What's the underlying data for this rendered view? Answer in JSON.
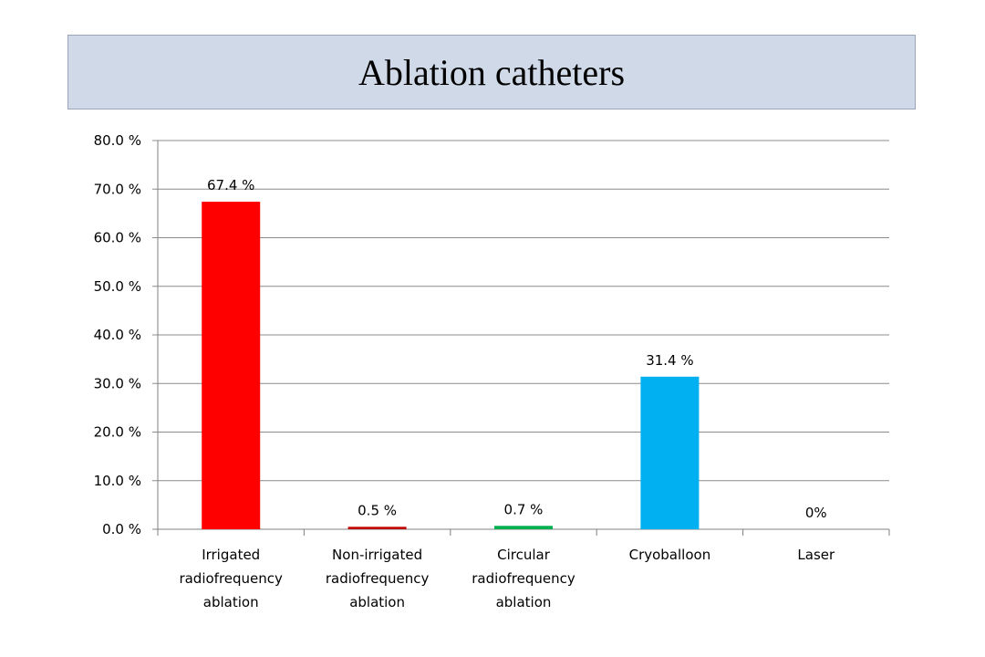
{
  "chart_data": {
    "type": "bar",
    "title": "Ablation catheters",
    "categories": [
      [
        "Irrigated",
        "radiofrequency",
        "ablation"
      ],
      [
        "Non-irrigated",
        "radiofrequency",
        "ablation"
      ],
      [
        "Circular",
        "radiofrequency",
        "ablation"
      ],
      [
        "Cryoballoon"
      ],
      [
        "Laser"
      ]
    ],
    "values": [
      67.4,
      0.5,
      0.7,
      31.4,
      0
    ],
    "data_labels": [
      "67.4 %",
      "0.5 %",
      "0.7 %",
      "31.4 %",
      "0%"
    ],
    "colors": [
      "#ff0000",
      "#c00000",
      "#00b050",
      "#00b0f0",
      "#7030a0"
    ],
    "ylim": [
      0,
      80
    ],
    "yticks": [
      0,
      10,
      20,
      30,
      40,
      50,
      60,
      70,
      80
    ],
    "ytick_labels": [
      "0.0 %",
      "10.0 %",
      "20.0 %",
      "30.0 %",
      "40.0 %",
      "50.0 %",
      "60.0 %",
      "70.0 %",
      "80.0 %"
    ],
    "grid": true,
    "legend": "none"
  }
}
